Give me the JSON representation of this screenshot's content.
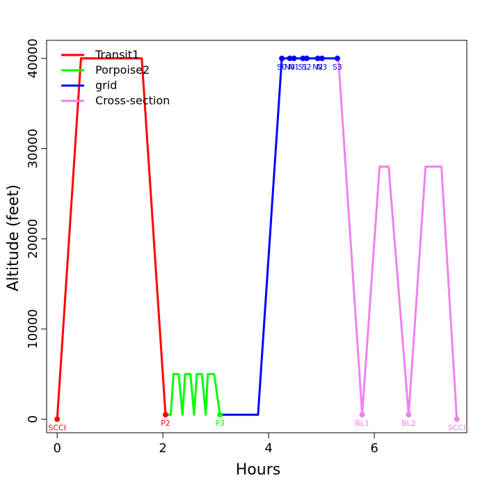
{
  "chart_data": {
    "type": "line",
    "title": "",
    "xlabel": "Hours",
    "ylabel": "Altitude (feet)",
    "xlim": [
      -0.2,
      7.75
    ],
    "ylim": [
      -1500,
      42000
    ],
    "xticks": [
      0,
      2,
      4,
      6
    ],
    "yticks": [
      0,
      10000,
      20000,
      30000,
      40000
    ],
    "grid": false,
    "legend_position": "top-left",
    "series": [
      {
        "name": "Transit1",
        "color": "#ff0000",
        "x": [
          0,
          0.45,
          1.6,
          2.05
        ],
        "y": [
          0,
          40000,
          40000,
          500
        ]
      },
      {
        "name": "Porpoise2",
        "color": "#00ff00",
        "x": [
          2.05,
          2.15,
          2.2,
          2.3,
          2.37,
          2.42,
          2.52,
          2.59,
          2.64,
          2.74,
          2.81,
          2.85,
          2.97,
          3.08
        ],
        "y": [
          500,
          500,
          5000,
          5000,
          500,
          5000,
          5000,
          500,
          5000,
          5000,
          500,
          5000,
          5000,
          500
        ]
      },
      {
        "name": "grid",
        "color": "#0000ff",
        "x": [
          3.08,
          3.8,
          4.25,
          4.45,
          4.55,
          4.75,
          4.85,
          5.05,
          5.15,
          5.32
        ],
        "y": [
          500,
          500,
          40000,
          40000,
          40000,
          40000,
          40000,
          40000,
          40000,
          40000
        ]
      },
      {
        "name": "Cross-section",
        "color": "#ee82ee",
        "x": [
          5.32,
          5.77,
          6.1,
          6.27,
          6.65,
          6.97,
          7.27,
          7.56
        ],
        "y": [
          40000,
          500,
          28000,
          28000,
          500,
          28000,
          28000,
          0
        ]
      }
    ],
    "points": [
      {
        "label": "SCCI",
        "x": 0,
        "y": 0,
        "color": "#ff0000"
      },
      {
        "label": "P2",
        "x": 2.05,
        "y": 500,
        "color": "#ff0000"
      },
      {
        "label": "P3",
        "x": 3.08,
        "y": 500,
        "color": "#00ff00"
      },
      {
        "label": "S0",
        "x": 4.25,
        "y": 40000,
        "color": "#0000ff"
      },
      {
        "label": "N0",
        "x": 4.4,
        "y": 40000,
        "color": "#0000ff"
      },
      {
        "label": "N1",
        "x": 4.48,
        "y": 40000,
        "color": "#0000ff"
      },
      {
        "label": "S1",
        "x": 4.65,
        "y": 40000,
        "color": "#0000ff"
      },
      {
        "label": "S2",
        "x": 4.72,
        "y": 40000,
        "color": "#0000ff"
      },
      {
        "label": "N2",
        "x": 4.93,
        "y": 40000,
        "color": "#0000ff"
      },
      {
        "label": "N3",
        "x": 5.01,
        "y": 40000,
        "color": "#0000ff"
      },
      {
        "label": "S3",
        "x": 5.3,
        "y": 40000,
        "color": "#0000ff"
      },
      {
        "label": "BL1",
        "x": 5.77,
        "y": 500,
        "color": "#ee82ee"
      },
      {
        "label": "BL2",
        "x": 6.65,
        "y": 500,
        "color": "#ee82ee"
      },
      {
        "label": "SCCI",
        "x": 7.56,
        "y": 0,
        "color": "#ee82ee"
      }
    ]
  }
}
